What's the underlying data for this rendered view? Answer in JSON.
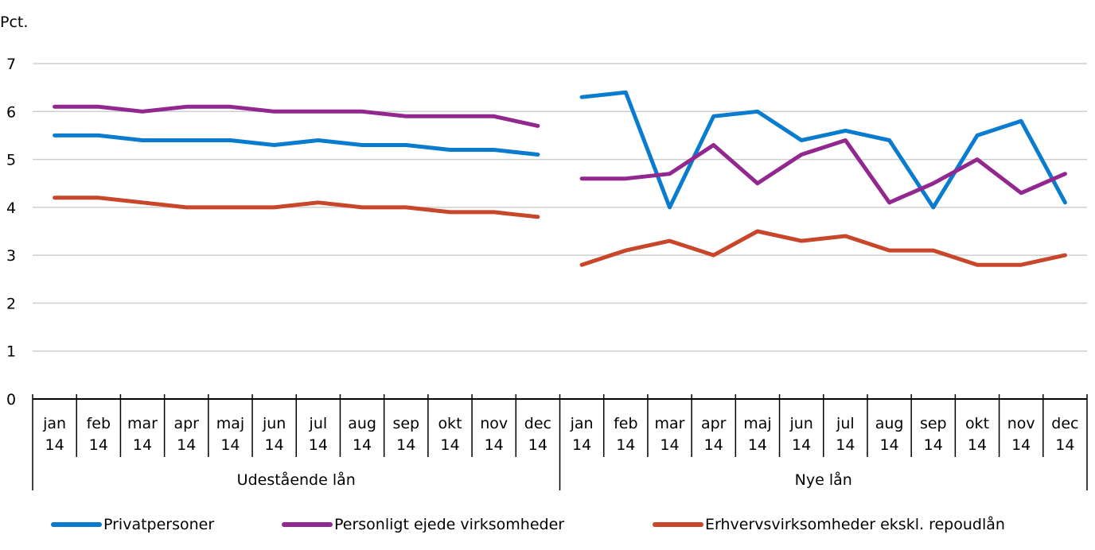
{
  "chart_data": {
    "type": "line",
    "title": "",
    "ylabel": "Pct.",
    "xlabel": "",
    "ylim": [
      0,
      7
    ],
    "yticks": [
      "0",
      "1",
      "2",
      "3",
      "4",
      "5",
      "6",
      "7"
    ],
    "grid": true,
    "legend_position": "bottom",
    "groups": [
      {
        "name": "Udestående lån",
        "categories": [
          {
            "month": "jan",
            "year": "14"
          },
          {
            "month": "feb",
            "year": "14"
          },
          {
            "month": "mar",
            "year": "14"
          },
          {
            "month": "apr",
            "year": "14"
          },
          {
            "month": "maj",
            "year": "14"
          },
          {
            "month": "jun",
            "year": "14"
          },
          {
            "month": "jul",
            "year": "14"
          },
          {
            "month": "aug",
            "year": "14"
          },
          {
            "month": "sep",
            "year": "14"
          },
          {
            "month": "okt",
            "year": "14"
          },
          {
            "month": "nov",
            "year": "14"
          },
          {
            "month": "dec",
            "year": "14"
          }
        ]
      },
      {
        "name": "Nye lån",
        "categories": [
          {
            "month": "jan",
            "year": "14"
          },
          {
            "month": "feb",
            "year": "14"
          },
          {
            "month": "mar",
            "year": "14"
          },
          {
            "month": "apr",
            "year": "14"
          },
          {
            "month": "maj",
            "year": "14"
          },
          {
            "month": "jun",
            "year": "14"
          },
          {
            "month": "jul",
            "year": "14"
          },
          {
            "month": "aug",
            "year": "14"
          },
          {
            "month": "sep",
            "year": "14"
          },
          {
            "month": "okt",
            "year": "14"
          },
          {
            "month": "nov",
            "year": "14"
          },
          {
            "month": "dec",
            "year": "14"
          }
        ]
      }
    ],
    "series": [
      {
        "name": "Privatpersoner",
        "color": "#0a7cd0",
        "values": [
          [
            5.5,
            5.5,
            5.4,
            5.4,
            5.4,
            5.3,
            5.4,
            5.3,
            5.3,
            5.2,
            5.2,
            5.1
          ],
          [
            6.3,
            6.4,
            4.0,
            5.9,
            6.0,
            5.4,
            5.6,
            5.4,
            4.0,
            5.5,
            5.8,
            4.1
          ]
        ]
      },
      {
        "name": "Personligt ejede virksomheder",
        "color": "#92278f",
        "values": [
          [
            6.1,
            6.1,
            6.0,
            6.1,
            6.1,
            6.0,
            6.0,
            6.0,
            5.9,
            5.9,
            5.9,
            5.7
          ],
          [
            4.6,
            4.6,
            4.7,
            5.3,
            4.5,
            5.1,
            5.4,
            4.1,
            4.5,
            5.0,
            4.3,
            4.7
          ]
        ]
      },
      {
        "name": "Erhvervsvirksomheder ekskl. repoudlån",
        "color": "#c8462a",
        "values": [
          [
            4.2,
            4.2,
            4.1,
            4.0,
            4.0,
            4.0,
            4.1,
            4.0,
            4.0,
            3.9,
            3.9,
            3.8
          ],
          [
            2.8,
            3.1,
            3.3,
            3.0,
            3.5,
            3.3,
            3.4,
            3.1,
            3.1,
            2.8,
            2.8,
            3.0
          ]
        ]
      }
    ]
  }
}
